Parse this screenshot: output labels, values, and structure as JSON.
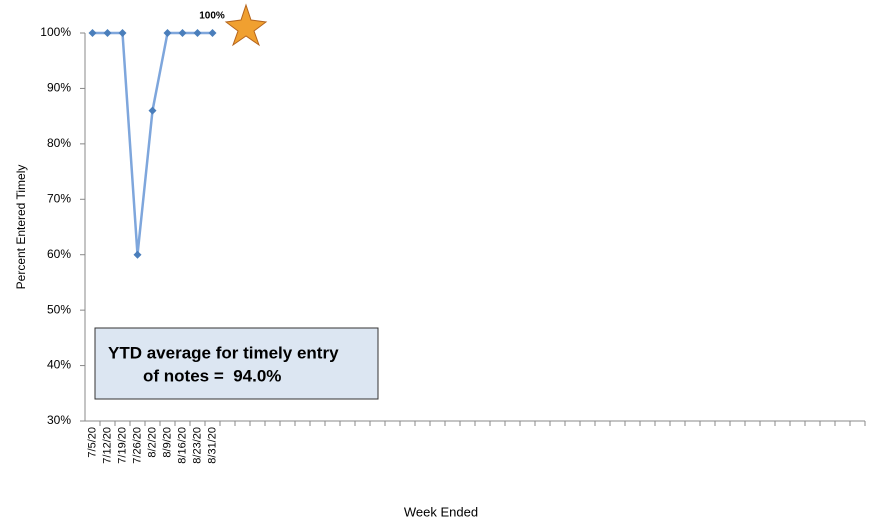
{
  "chart_data": {
    "type": "line",
    "x_label": "Week Ended",
    "y_label": "Percent Entered Timely",
    "categories": [
      "7/5/20",
      "7/12/20",
      "7/19/20",
      "7/26/20",
      "8/2/20",
      "8/9/20",
      "8/16/20",
      "8/23/20",
      "8/31/20",
      null,
      null,
      null,
      null,
      null,
      null,
      null,
      null,
      null,
      null,
      null,
      null,
      null,
      null,
      null,
      null,
      null,
      null,
      null,
      null,
      null,
      null,
      null,
      null,
      null,
      null,
      null,
      null,
      null,
      null,
      null,
      null,
      null,
      null,
      null,
      null,
      null,
      null,
      null,
      null,
      null,
      null,
      null
    ],
    "series": [
      {
        "name": "Percent Entered Timely",
        "color": "#7ea6dc",
        "marker_color": "#4a7ebb",
        "values": [
          100,
          100,
          100,
          60,
          86,
          100,
          100,
          100,
          100,
          null,
          null,
          null,
          null,
          null,
          null,
          null,
          null,
          null,
          null,
          null,
          null,
          null,
          null,
          null,
          null,
          null,
          null,
          null,
          null,
          null,
          null,
          null,
          null,
          null,
          null,
          null,
          null,
          null,
          null,
          null,
          null,
          null,
          null,
          null,
          null,
          null,
          null,
          null,
          null,
          null,
          null,
          null
        ]
      }
    ],
    "ylim": [
      30,
      100
    ],
    "yticks": [
      {
        "value": 30,
        "label": "30%"
      },
      {
        "value": 40,
        "label": "40%"
      },
      {
        "value": 50,
        "label": "50%"
      },
      {
        "value": 60,
        "label": "60%"
      },
      {
        "value": 70,
        "label": "70%"
      },
      {
        "value": 80,
        "label": "80%"
      },
      {
        "value": 90,
        "label": "90%"
      },
      {
        "value": 100,
        "label": "100%"
      }
    ],
    "grid": false,
    "annotations": [
      "YTD average for timely entry",
      "of notes =  94.0%"
    ],
    "star_label": "100%"
  }
}
